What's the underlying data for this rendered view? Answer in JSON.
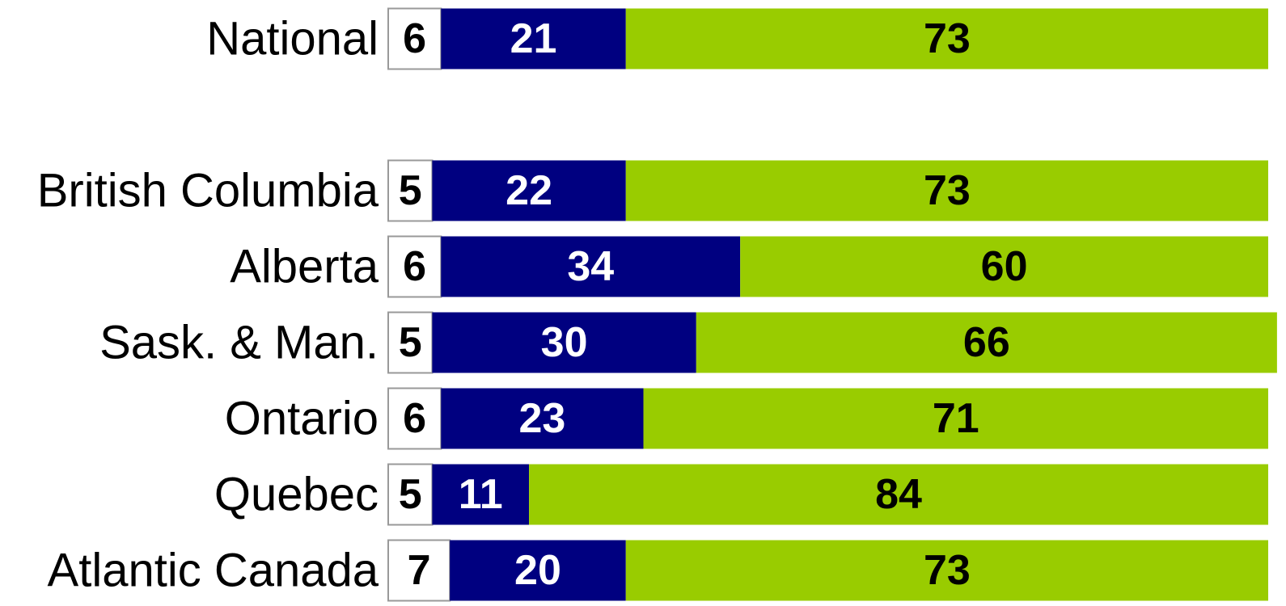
{
  "chart_data": {
    "type": "stacked-bar-horizontal",
    "categories": [
      "National",
      null,
      "British Columbia",
      "Alberta",
      "Sask. & Man.",
      "Ontario",
      "Quebec",
      "Atlantic Canada"
    ],
    "series": [
      {
        "color": "#ffffff",
        "values": [
          6,
          null,
          5,
          6,
          5,
          6,
          5,
          7
        ]
      },
      {
        "color": "#000080",
        "values": [
          21,
          null,
          22,
          34,
          30,
          23,
          11,
          20
        ]
      },
      {
        "color": "#99cc00",
        "values": [
          73,
          null,
          73,
          60,
          66,
          71,
          84,
          73
        ]
      }
    ],
    "xlim": [
      0,
      100
    ]
  }
}
